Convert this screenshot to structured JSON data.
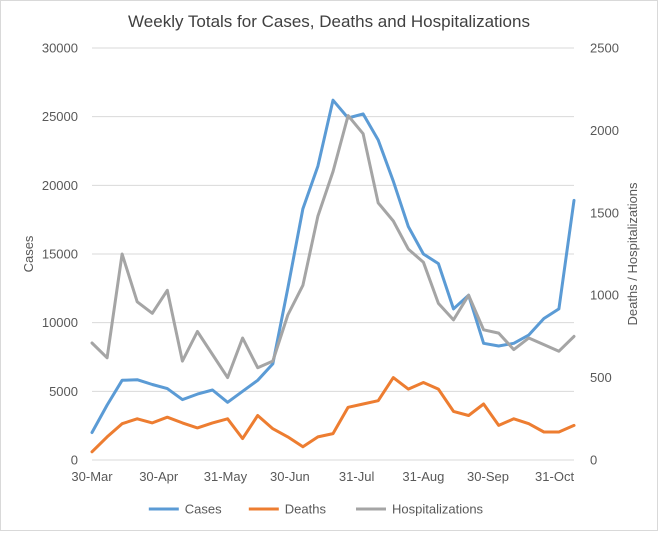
{
  "chart_data": {
    "type": "line",
    "title": "Weekly Totals for Cases, Deaths and Hospitalizations",
    "ylabel": "Cases",
    "y2label": "Deaths / Hospitalizations",
    "ylim": [
      0,
      30000
    ],
    "yticks": [
      0,
      5000,
      10000,
      15000,
      20000,
      25000,
      30000
    ],
    "y2lim": [
      0,
      2500
    ],
    "y2ticks": [
      0,
      500,
      1000,
      1500,
      2000,
      2500
    ],
    "x": [
      "2020-03-30",
      "2020-04-06",
      "2020-04-13",
      "2020-04-20",
      "2020-04-27",
      "2020-05-04",
      "2020-05-11",
      "2020-05-18",
      "2020-05-25",
      "2020-06-01",
      "2020-06-08",
      "2020-06-15",
      "2020-06-22",
      "2020-06-29",
      "2020-07-06",
      "2020-07-13",
      "2020-07-20",
      "2020-07-27",
      "2020-08-03",
      "2020-08-10",
      "2020-08-17",
      "2020-08-24",
      "2020-08-31",
      "2020-09-07",
      "2020-09-14",
      "2020-09-21",
      "2020-09-28",
      "2020-10-05",
      "2020-10-12",
      "2020-10-19",
      "2020-10-26",
      "2020-11-02",
      "2020-11-09"
    ],
    "xtick_labels": [
      "30-Mar",
      "30-Apr",
      "31-May",
      "30-Jun",
      "31-Jul",
      "31-Aug",
      "30-Sep",
      "31-Oct"
    ],
    "xtick_positions": [
      0,
      4.43,
      8.86,
      13.14,
      17.57,
      22.0,
      26.29,
      30.71
    ],
    "grid": true,
    "legend_position": "bottom",
    "series": [
      {
        "name": "Cases",
        "axis": "left",
        "color": "#5B9BD5",
        "values": [
          2000,
          4000,
          5800,
          5850,
          5500,
          5200,
          4400,
          4800,
          5100,
          4200,
          5000,
          5800,
          7000,
          12500,
          18300,
          21400,
          26200,
          24900,
          25200,
          23300,
          20300,
          17000,
          15000,
          14300,
          11000,
          12000,
          8500,
          8300,
          8500,
          9100,
          10300,
          11000,
          18900
        ]
      },
      {
        "name": "Deaths",
        "axis": "right",
        "color": "#ED7D31",
        "values": [
          50,
          140,
          220,
          250,
          225,
          260,
          225,
          195,
          225,
          250,
          130,
          270,
          190,
          140,
          80,
          140,
          160,
          320,
          340,
          360,
          500,
          430,
          470,
          430,
          295,
          270,
          340,
          210,
          250,
          220,
          170,
          170,
          210
        ]
      },
      {
        "name": "Hospitalizations",
        "axis": "right",
        "color": "#A5A5A5",
        "values": [
          710,
          620,
          1250,
          960,
          890,
          1030,
          600,
          780,
          640,
          500,
          740,
          560,
          600,
          880,
          1060,
          1480,
          1750,
          2090,
          1980,
          1560,
          1450,
          1280,
          1200,
          950,
          850,
          1000,
          790,
          770,
          670,
          740,
          700,
          660,
          750
        ]
      }
    ]
  }
}
